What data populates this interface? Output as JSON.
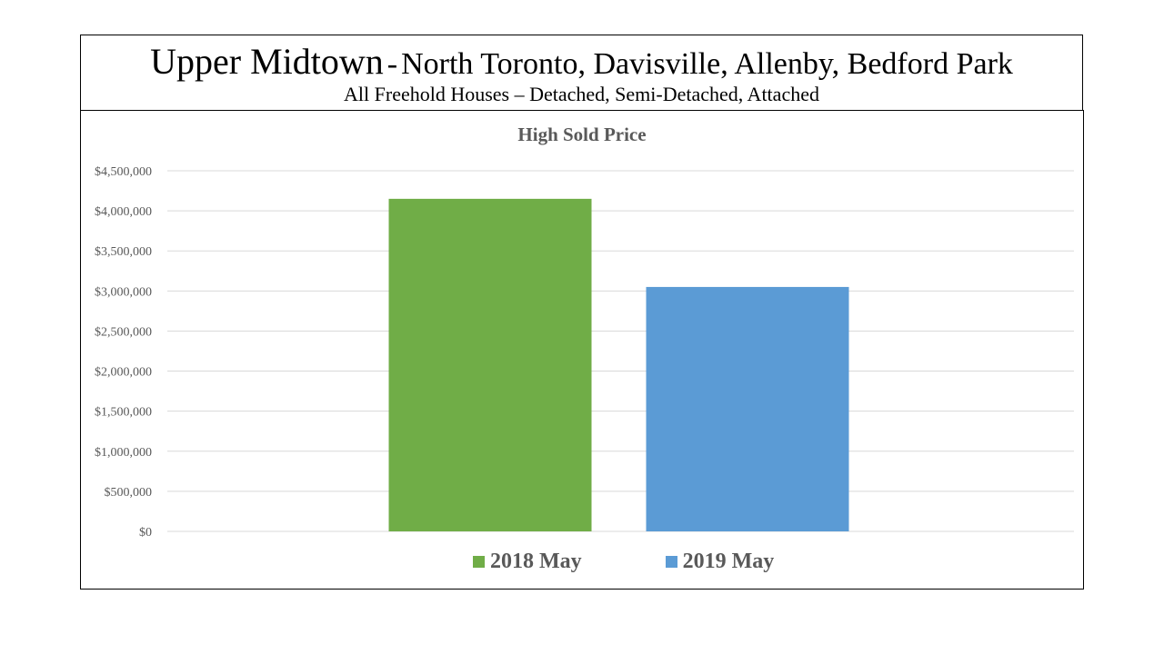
{
  "header": {
    "title_main": "Upper Midtown",
    "title_dash": "-",
    "title_sub": "North Toronto, Davisville, Allenby, Bedford Park",
    "subtitle": "All Freehold Houses – Detached, Semi-Detached, Attached"
  },
  "chart_data": {
    "type": "bar",
    "title": "High Sold Price",
    "xlabel": "",
    "ylabel": "",
    "categories": [
      ""
    ],
    "series": [
      {
        "name": "2018 May",
        "values": [
          4150000
        ],
        "color": "#70AD47"
      },
      {
        "name": "2019 May",
        "values": [
          3050000
        ],
        "color": "#5B9BD5"
      }
    ],
    "ylim": [
      0,
      4500000
    ],
    "yticks": [
      0,
      500000,
      1000000,
      1500000,
      2000000,
      2500000,
      3000000,
      3500000,
      4000000,
      4500000
    ],
    "ytick_labels": [
      "$0",
      "$500,000",
      "$1,000,000",
      "$1,500,000",
      "$2,000,000",
      "$2,500,000",
      "$3,000,000",
      "$3,500,000",
      "$4,000,000",
      "$4,500,000"
    ],
    "grid": true,
    "legend_position": "bottom",
    "colors": {
      "grid": "#D9D9D9",
      "tick_text": "#595959",
      "title_text": "#595959"
    }
  }
}
